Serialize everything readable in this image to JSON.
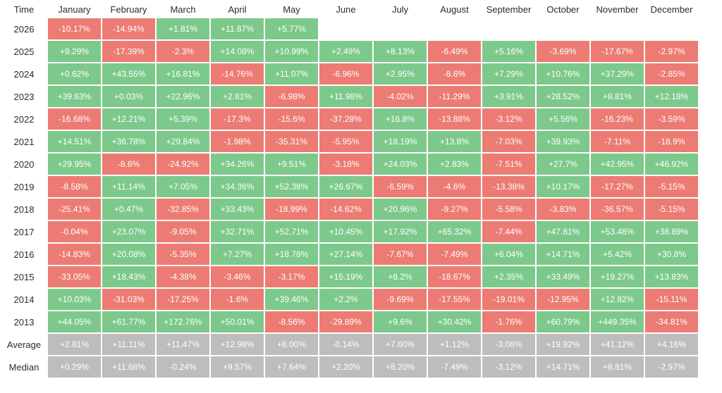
{
  "table": {
    "corner_label": "Time",
    "months": [
      "January",
      "February",
      "March",
      "April",
      "May",
      "June",
      "July",
      "August",
      "September",
      "October",
      "November",
      "December"
    ],
    "colors": {
      "positive": "#7cc98b",
      "negative": "#ec7b74",
      "summary": "#bdbdbd"
    },
    "rows": [
      {
        "label": "2026",
        "values": [
          "-10.17%",
          "-14.94%",
          "+1.81%",
          "+11.87%",
          "+5.77%",
          "",
          "",
          "",
          "",
          "",
          "",
          ""
        ]
      },
      {
        "label": "2025",
        "values": [
          "+9.29%",
          "-17.39%",
          "-2.3%",
          "+14.08%",
          "+10.99%",
          "+2.49%",
          "+8.13%",
          "-6.49%",
          "+5.16%",
          "-3.69%",
          "-17.67%",
          "-2.97%"
        ]
      },
      {
        "label": "2024",
        "values": [
          "+0.62%",
          "+43.55%",
          "+16.81%",
          "-14.76%",
          "+11.07%",
          "-6.96%",
          "+2.95%",
          "-8.6%",
          "+7.29%",
          "+10.76%",
          "+37.29%",
          "-2.85%"
        ]
      },
      {
        "label": "2023",
        "values": [
          "+39.63%",
          "+0.03%",
          "+22.96%",
          "+2.81%",
          "-6.98%",
          "+11.98%",
          "-4.02%",
          "-11.29%",
          "+3.91%",
          "+28.52%",
          "+8.81%",
          "+12.18%"
        ]
      },
      {
        "label": "2022",
        "values": [
          "-16.68%",
          "+12.21%",
          "+5.39%",
          "-17.3%",
          "-15.6%",
          "-37.28%",
          "+16.8%",
          "-13.88%",
          "-3.12%",
          "+5.56%",
          "-16.23%",
          "-3.59%"
        ]
      },
      {
        "label": "2021",
        "values": [
          "+14.51%",
          "+36.78%",
          "+29.84%",
          "-1.98%",
          "-35.31%",
          "-5.95%",
          "+18.19%",
          "+13.8%",
          "-7.03%",
          "+39.93%",
          "-7.11%",
          "-18.9%"
        ]
      },
      {
        "label": "2020",
        "values": [
          "+29.95%",
          "-8.6%",
          "-24.92%",
          "+34.26%",
          "+9.51%",
          "-3.18%",
          "+24.03%",
          "+2.83%",
          "-7.51%",
          "+27.7%",
          "+42.95%",
          "+46.92%"
        ]
      },
      {
        "label": "2019",
        "values": [
          "-8.58%",
          "+11.14%",
          "+7.05%",
          "+34.36%",
          "+52.38%",
          "+26.67%",
          "-6.59%",
          "-4.6%",
          "-13.38%",
          "+10.17%",
          "-17.27%",
          "-5.15%"
        ]
      },
      {
        "label": "2018",
        "values": [
          "-25.41%",
          "+0.47%",
          "-32.85%",
          "+33.43%",
          "-18.99%",
          "-14.62%",
          "+20.96%",
          "-9.27%",
          "-5.58%",
          "-3.83%",
          "-36.57%",
          "-5.15%"
        ]
      },
      {
        "label": "2017",
        "values": [
          "-0.04%",
          "+23.07%",
          "-9.05%",
          "+32.71%",
          "+52.71%",
          "+10.45%",
          "+17.92%",
          "+65.32%",
          "-7.44%",
          "+47.81%",
          "+53.48%",
          "+38.89%"
        ]
      },
      {
        "label": "2016",
        "values": [
          "-14.83%",
          "+20.08%",
          "-5.35%",
          "+7.27%",
          "+18.78%",
          "+27.14%",
          "-7.67%",
          "-7.49%",
          "+6.04%",
          "+14.71%",
          "+5.42%",
          "+30.8%"
        ]
      },
      {
        "label": "2015",
        "values": [
          "-33.05%",
          "+18.43%",
          "-4.38%",
          "-3.46%",
          "-3.17%",
          "+15.19%",
          "+8.2%",
          "-18.67%",
          "+2.35%",
          "+33.49%",
          "+19.27%",
          "+13.83%"
        ]
      },
      {
        "label": "2014",
        "values": [
          "+10.03%",
          "-31.03%",
          "-17.25%",
          "-1.6%",
          "+39.46%",
          "+2.2%",
          "-9.69%",
          "-17.55%",
          "-19.01%",
          "-12.95%",
          "+12.82%",
          "-15.11%"
        ]
      },
      {
        "label": "2013",
        "values": [
          "+44.05%",
          "+61.77%",
          "+172.76%",
          "+50.01%",
          "-8.56%",
          "-29.89%",
          "+9.6%",
          "+30.42%",
          "-1.76%",
          "+60.79%",
          "+449.35%",
          "-34.81%"
        ]
      }
    ],
    "summary_rows": [
      {
        "label": "Average",
        "values": [
          "+2.81%",
          "+11.11%",
          "+11.47%",
          "+12.98%",
          "+8.00%",
          "-0.14%",
          "+7.60%",
          "+1.12%",
          "-3.08%",
          "+19.92%",
          "+41.12%",
          "+4.16%"
        ]
      },
      {
        "label": "Median",
        "values": [
          "+0.29%",
          "+11.68%",
          "-0.24%",
          "+9.57%",
          "+7.64%",
          "+2.20%",
          "+8.20%",
          "-7.49%",
          "-3.12%",
          "+14.71%",
          "+8.81%",
          "-2.97%"
        ]
      }
    ]
  }
}
